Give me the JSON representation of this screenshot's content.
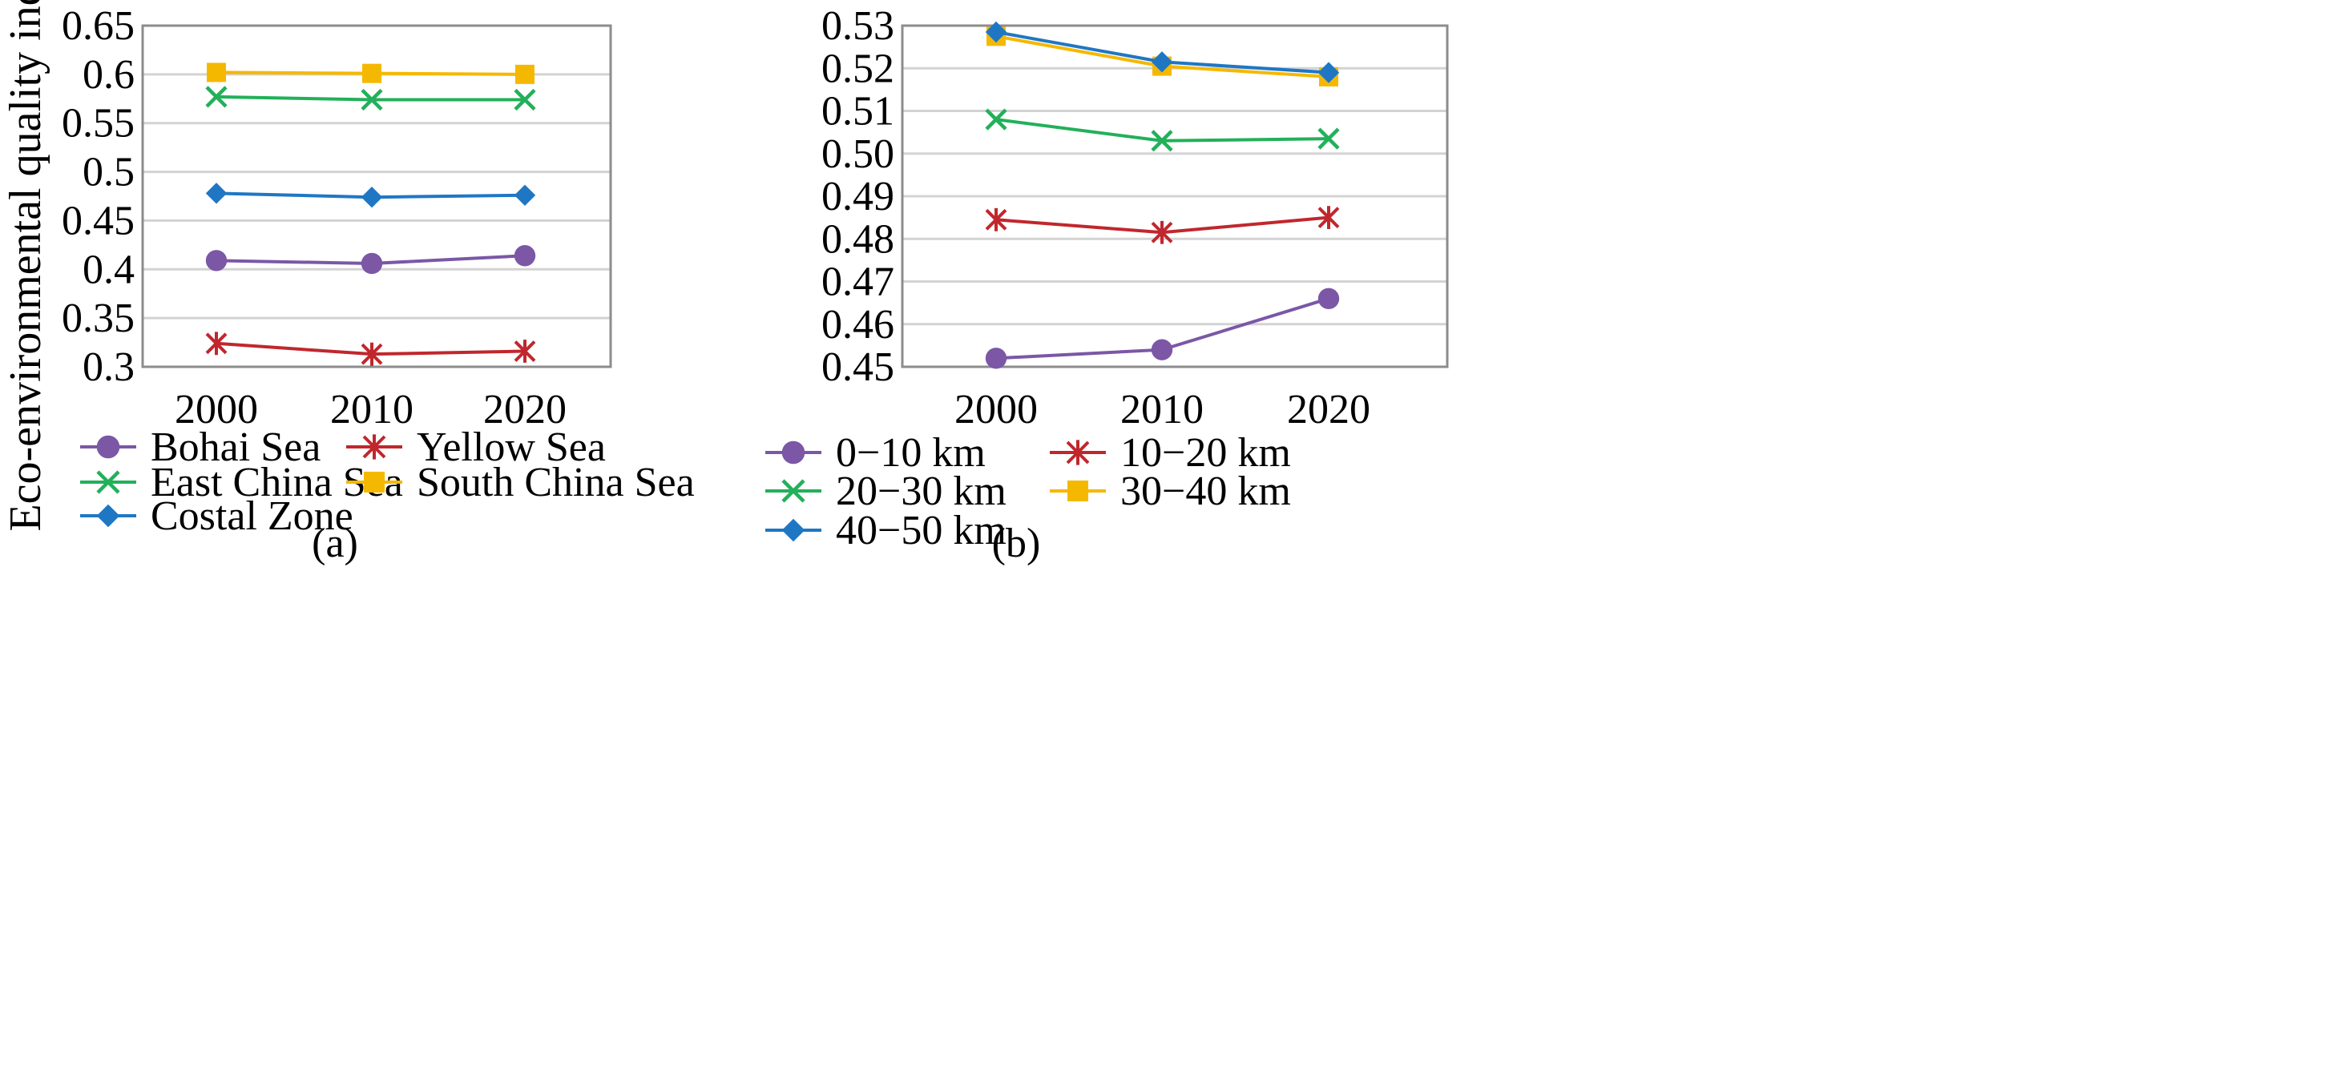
{
  "chart_data": [
    {
      "type": "line",
      "panel_label": "(a)",
      "ylabel": "Eco-environmental quality index",
      "xlabel": "",
      "categories": [
        "2000",
        "2010",
        "2020"
      ],
      "ylim": [
        0.3,
        0.65
      ],
      "yticks": [
        "0.3",
        "0.35",
        "0.4",
        "0.45",
        "0.5",
        "0.55",
        "0.6",
        "0.65"
      ],
      "grid": "horizontal",
      "legend_position": "bottom",
      "series": [
        {
          "name": "Bohai Sea",
          "marker": "circle",
          "color": "#7b57a6",
          "values": [
            0.409,
            0.406,
            0.414
          ]
        },
        {
          "name": "Yellow Sea",
          "marker": "asterisk",
          "color": "#c0272d",
          "values": [
            0.324,
            0.313,
            0.316
          ]
        },
        {
          "name": "East China Sea",
          "marker": "x",
          "color": "#22b05a",
          "values": [
            0.577,
            0.574,
            0.574
          ]
        },
        {
          "name": "South China Sea",
          "marker": "square",
          "color": "#f5b800",
          "values": [
            0.602,
            0.601,
            0.6
          ]
        },
        {
          "name": "Costal Zone",
          "marker": "diamond",
          "color": "#1f77c4",
          "values": [
            0.478,
            0.474,
            0.476
          ]
        }
      ]
    },
    {
      "type": "line",
      "panel_label": "(b)",
      "ylabel": "",
      "xlabel": "",
      "categories": [
        "2000",
        "2010",
        "2020"
      ],
      "ylim": [
        0.45,
        0.53
      ],
      "yticks": [
        "0.45",
        "0.46",
        "0.47",
        "0.48",
        "0.49",
        "0.50",
        "0.51",
        "0.52",
        "0.53"
      ],
      "grid": "horizontal",
      "legend_position": "bottom",
      "series": [
        {
          "name": "0−10 km",
          "marker": "circle",
          "color": "#7b57a6",
          "values": [
            0.452,
            0.454,
            0.466
          ]
        },
        {
          "name": "10−20 km",
          "marker": "asterisk",
          "color": "#c0272d",
          "values": [
            0.4845,
            0.4815,
            0.485
          ]
        },
        {
          "name": "20−30 km",
          "marker": "x",
          "color": "#22b05a",
          "values": [
            0.508,
            0.503,
            0.5035
          ]
        },
        {
          "name": "30−40 km",
          "marker": "square",
          "color": "#f5b800",
          "values": [
            0.5275,
            0.5205,
            0.518
          ]
        },
        {
          "name": "40−50 km",
          "marker": "diamond",
          "color": "#1f77c4",
          "values": [
            0.5285,
            0.5215,
            0.519
          ]
        }
      ]
    }
  ]
}
